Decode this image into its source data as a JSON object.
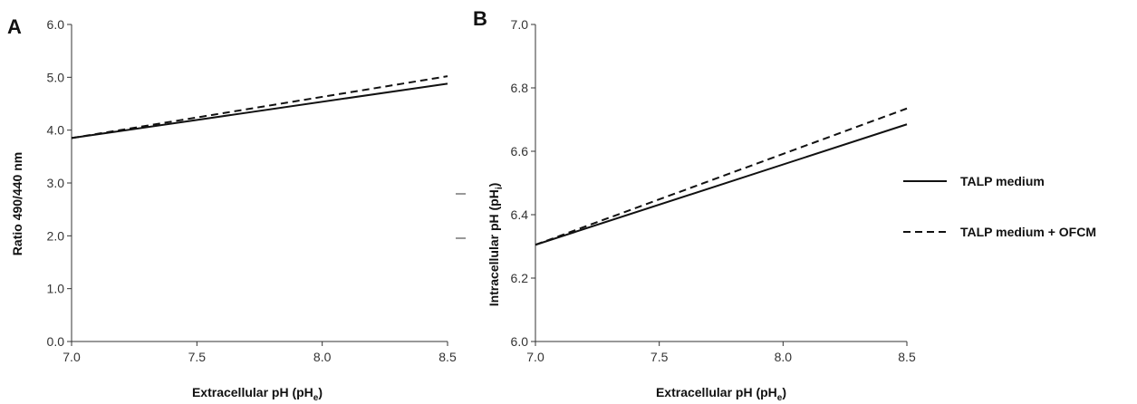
{
  "chart_data": [
    {
      "panel": "A",
      "type": "line",
      "title": "",
      "xlabel": "Extracellular pH (pH",
      "xlabel_sub": "e",
      "xlabel_end": ")",
      "ylabel": "Ratio 490/440 nm",
      "xlim": [
        7.0,
        8.5
      ],
      "ylim": [
        0.0,
        6.0
      ],
      "xticks": [
        "7.0",
        "7.5",
        "8.0",
        "8.5"
      ],
      "yticks": [
        "0.0",
        "1.0",
        "2.0",
        "3.0",
        "4.0",
        "5.0",
        "6.0"
      ],
      "series": [
        {
          "name": "TALP medium",
          "style": "solid",
          "x": [
            7.0,
            8.5
          ],
          "y": [
            3.85,
            4.88
          ]
        },
        {
          "name": "TALP medium + OFCM",
          "style": "dashed",
          "x": [
            7.0,
            8.5
          ],
          "y": [
            3.85,
            5.02
          ]
        }
      ]
    },
    {
      "panel": "B",
      "type": "line",
      "title": "",
      "xlabel": "Extracellular pH (pH",
      "xlabel_sub": "e",
      "xlabel_end": ")",
      "ylabel": "Intracellular pH (pH",
      "ylabel_sub": "i",
      "ylabel_end": ")",
      "xlim": [
        7.0,
        8.5
      ],
      "ylim": [
        6.0,
        7.0
      ],
      "xticks": [
        "7.0",
        "7.5",
        "8.0",
        "8.5"
      ],
      "yticks": [
        "6.0",
        "6.2",
        "6.4",
        "6.6",
        "6.8",
        "7.0"
      ],
      "series": [
        {
          "name": "TALP medium",
          "style": "solid",
          "x": [
            7.0,
            8.5
          ],
          "y": [
            6.305,
            6.685
          ]
        },
        {
          "name": "TALP medium + OFCM",
          "style": "dashed",
          "x": [
            7.0,
            8.5
          ],
          "y": [
            6.305,
            6.735
          ]
        }
      ]
    }
  ],
  "legend": {
    "placement": "right",
    "items": [
      {
        "label": "TALP medium",
        "style": "solid"
      },
      {
        "label": "TALP medium + OFCM",
        "style": "dashed"
      }
    ]
  }
}
